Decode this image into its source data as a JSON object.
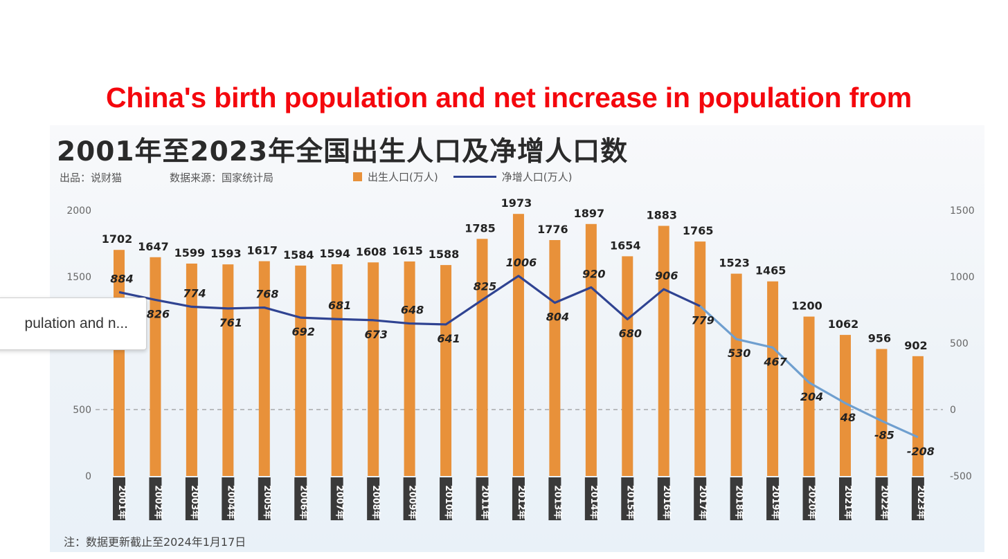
{
  "title": "China's birth population and net increase in population from",
  "chinese_title": "2001年至2023年全国出生人口及净增人口数",
  "credit": "出品：说财猫",
  "source": "数据来源：国家统计局",
  "footnote": "注：数据更新截止至2024年1月17日",
  "tooltip": "pulation and n...",
  "colors": {
    "bar": "#e8913a",
    "line_dark": "#2f4392",
    "line_light": "#6f9fcf",
    "title": "#f4070d",
    "year_box": "#3a3a3a"
  },
  "chart_data": {
    "type": "bar+line",
    "categories": [
      "2001年",
      "2002年",
      "2003年",
      "2004年",
      "2005年",
      "2006年",
      "2007年",
      "2008年",
      "2009年",
      "2010年",
      "2011年",
      "2012年",
      "2013年",
      "2014年",
      "2015年",
      "2016年",
      "2017年",
      "2018年",
      "2019年",
      "2020年",
      "2021年",
      "2022年",
      "2023年"
    ],
    "series": [
      {
        "name": "出生人口(万人)",
        "type": "bar",
        "axis": "left",
        "values": [
          1702,
          1647,
          1599,
          1593,
          1617,
          1584,
          1594,
          1608,
          1615,
          1588,
          1785,
          1973,
          1776,
          1897,
          1654,
          1883,
          1765,
          1523,
          1465,
          1200,
          1062,
          956,
          902
        ]
      },
      {
        "name": "净增人口(万人)",
        "type": "line",
        "axis": "right",
        "values": [
          884,
          826,
          774,
          761,
          768,
          692,
          681,
          673,
          648,
          641,
          825,
          1006,
          804,
          920,
          680,
          906,
          779,
          530,
          467,
          204,
          48,
          -85,
          -208
        ]
      }
    ],
    "left_axis": {
      "ticks": [
        "0",
        "500",
        "1500",
        "2000"
      ],
      "range": [
        0,
        2000
      ]
    },
    "right_axis": {
      "ticks": [
        "-500",
        "0",
        "500",
        "1000",
        "1500"
      ],
      "range": [
        -500,
        1500
      ]
    },
    "reference_line": 0
  }
}
